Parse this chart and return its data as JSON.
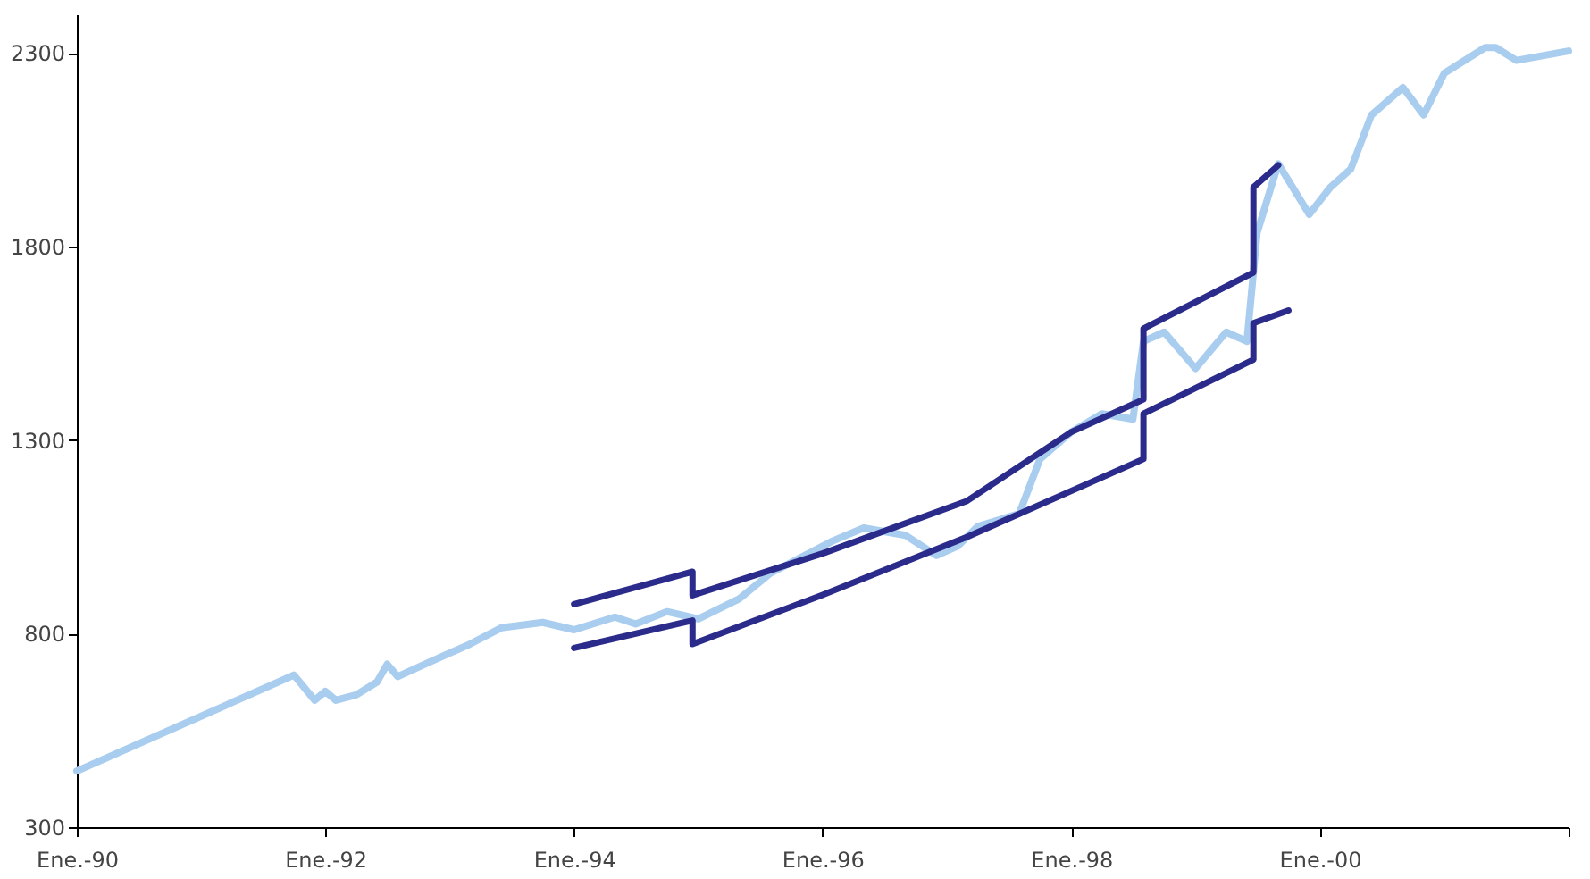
{
  "chart_data": {
    "type": "line",
    "xlim": [
      "1990-01-01",
      "2002-01-01"
    ],
    "ylim": [
      300,
      2400
    ],
    "xticks": [
      {
        "value": "1990-01-01",
        "label": "Ene.-90"
      },
      {
        "value": "1992-01-01",
        "label": "Ene.-92"
      },
      {
        "value": "1994-01-01",
        "label": "Ene.-94"
      },
      {
        "value": "1996-01-01",
        "label": "Ene.-96"
      },
      {
        "value": "1998-01-01",
        "label": "Ene.-98"
      },
      {
        "value": "2000-01-01",
        "label": "Ene.-00"
      },
      {
        "value": "2002-01-01",
        "label": null
      }
    ],
    "yticks": [
      300,
      800,
      1300,
      1800,
      2300
    ],
    "grid": false,
    "legend": false,
    "marker": "none",
    "line_style": "solid",
    "series": [
      {
        "color": "#2b2b8c",
        "x": [
          "1994-01-01",
          "1994-12-15",
          "1994-12-15",
          "1996-01-01",
          "1997-03-01",
          "1998-01-01",
          "1998-08-01",
          "1998-08-01",
          "1999-06-20",
          "1999-06-20",
          "1999-09-01"
        ],
        "values": [
          876,
          960,
          899,
          1007,
          1143,
          1321,
          1405,
          1588,
          1733,
          1953,
          2010
        ]
      },
      {
        "color": "#2b2b8c",
        "x": [
          "1994-01-01",
          "1994-12-15",
          "1994-12-15",
          "1996-01-01",
          "1997-03-01",
          "1998-08-01",
          "1998-08-01",
          "1999-06-20",
          "1999-06-20",
          "1999-10-01"
        ],
        "values": [
          763,
          834,
          773,
          900,
          1050,
          1251,
          1368,
          1508,
          1602,
          1635
        ]
      },
      {
        "color": "#a9cdef",
        "x": [
          "1990-01-01",
          "1991-10-01",
          "1991-12-01",
          "1992-01-01",
          "1992-02-01",
          "1992-04-01",
          "1992-06-01",
          "1992-07-01",
          "1992-08-01",
          "1992-11-01",
          "1993-03-01",
          "1993-06-01",
          "1993-10-01",
          "1994-01-01",
          "1994-05-01",
          "1994-07-01",
          "1994-10-01",
          "1995-01-01",
          "1995-05-01",
          "1995-08-01",
          "1996-02-01",
          "1996-05-01",
          "1996-09-01",
          "1996-12-01",
          "1997-02-01",
          "1997-04-01",
          "1997-08-01",
          "1997-10-01",
          "1998-01-01",
          "1998-04-01",
          "1998-07-01",
          "1998-08-01",
          "1998-10-01",
          "1999-01-01",
          "1999-04-01",
          "1999-06-01",
          "1999-07-01",
          "1999-09-01",
          "1999-12-01",
          "2000-02-01",
          "2000-04-01",
          "2000-06-01",
          "2000-09-01",
          "2000-11-01",
          "2001-01-01",
          "2001-05-01",
          "2001-06-01",
          "2001-08-01",
          "2002-01-01"
        ],
        "values": [
          445,
          693,
          628,
          651,
          628,
          642,
          675,
          721,
          689,
          726,
          773,
          815,
          829,
          810,
          843,
          825,
          857,
          838,
          890,
          956,
          1040,
          1073,
          1054,
          1002,
          1026,
          1077,
          1110,
          1251,
          1321,
          1368,
          1354,
          1555,
          1579,
          1485,
          1579,
          1555,
          1836,
          2014,
          1883,
          1953,
          2000,
          2140,
          2211,
          2140,
          2248,
          2314,
          2314,
          2281,
          2305
        ]
      }
    ]
  }
}
